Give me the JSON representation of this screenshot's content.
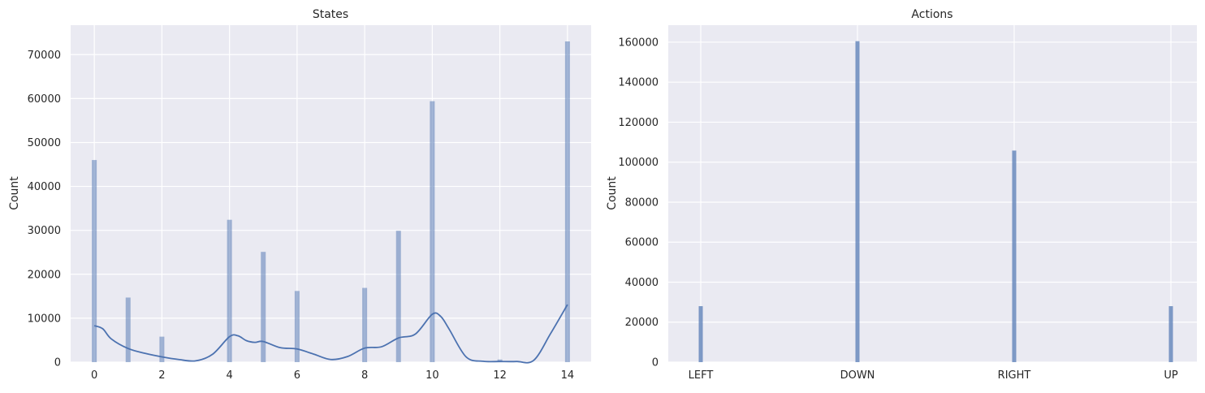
{
  "chart_data": [
    {
      "type": "bar",
      "title": "States",
      "xlabel": "",
      "ylabel": "Count",
      "xlim": [
        -0.7,
        14.7
      ],
      "ylim": [
        0,
        76700
      ],
      "xticks": [
        0,
        2,
        4,
        6,
        8,
        10,
        12,
        14
      ],
      "yticks": [
        0,
        10000,
        20000,
        30000,
        40000,
        50000,
        60000,
        70000
      ],
      "grid": true,
      "bar_color": "#4c72b0",
      "x": [
        0,
        1,
        2,
        4,
        5,
        6,
        8,
        9,
        10,
        12,
        14
      ],
      "values": [
        46000,
        14700,
        5800,
        32400,
        25100,
        16200,
        16900,
        29900,
        59400,
        600,
        73000
      ],
      "kde": {
        "color": "#4c72b0",
        "x": [
          0,
          0.25,
          0.5,
          1,
          1.5,
          2,
          2.5,
          3,
          3.5,
          4,
          4.25,
          4.5,
          4.75,
          5,
          5.5,
          6,
          6.5,
          7,
          7.5,
          8,
          8.5,
          9,
          9.5,
          10,
          10.25,
          10.5,
          11,
          11.5,
          12,
          12.5,
          13,
          13.5,
          14
        ],
        "y": [
          8300,
          7600,
          5300,
          3100,
          2000,
          1200,
          600,
          300,
          1800,
          5800,
          6000,
          4900,
          4500,
          4700,
          3300,
          3000,
          1800,
          600,
          1300,
          3200,
          3500,
          5500,
          6400,
          10900,
          10400,
          7500,
          1200,
          200,
          150,
          150,
          400,
          6500,
          13100
        ]
      }
    },
    {
      "type": "bar",
      "title": "Actions",
      "xlabel": "",
      "ylabel": "Count",
      "ylim": [
        0,
        168500
      ],
      "categories": [
        "LEFT",
        "DOWN",
        "RIGHT",
        "UP"
      ],
      "yticks": [
        0,
        20000,
        40000,
        60000,
        80000,
        100000,
        120000,
        140000,
        160000
      ],
      "grid": true,
      "bar_color": "#4c72b0",
      "values": [
        28000,
        160500,
        105800,
        28000
      ]
    }
  ]
}
